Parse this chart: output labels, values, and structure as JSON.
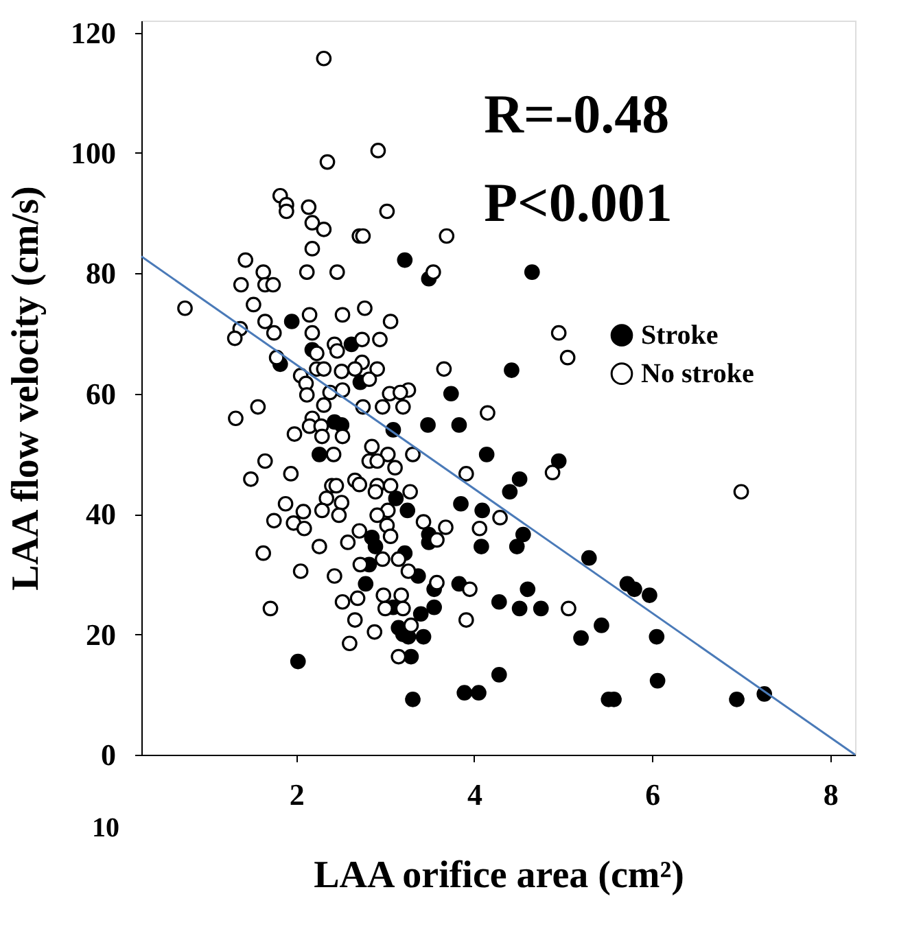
{
  "chart_data": {
    "type": "scatter",
    "xlabel": "LAA orifice area (cm²)",
    "ylabel": "LAA  flow  velocity (cm/s)",
    "xlim": [
      0.26,
      8.28
    ],
    "ylim": [
      0,
      122
    ],
    "xticks": [
      2,
      4,
      6,
      8
    ],
    "yticks": [
      0,
      20,
      40,
      60,
      80,
      100,
      120
    ],
    "grid": false,
    "legend": "right",
    "annotations": [
      "R=-0.48",
      "P<0.001",
      "10"
    ],
    "series": [
      {
        "name": "Stroke",
        "color": "#000000",
        "marker": "circle",
        "x": [
          3.22,
          3.49,
          1.95,
          2.18,
          2.62,
          1.82,
          2.72,
          3.74,
          2.43,
          2.51,
          3.09,
          3.48,
          3.83,
          2.26,
          4.14,
          3.12,
          3.25,
          3.85,
          4.09,
          2.85,
          2.89,
          3.49,
          3.49,
          4.08,
          3.22,
          2.82,
          3.37,
          3.55,
          2.78,
          3.83,
          4.28,
          3.09,
          3.55,
          3.4,
          3.15,
          3.2,
          3.26,
          3.43,
          3.29,
          2.02,
          3.31,
          3.89,
          4.05,
          4.28,
          4.65,
          4.42,
          4.95,
          4.51,
          4.4,
          4.48,
          4.55,
          5.29,
          5.72,
          5.8,
          5.97,
          4.6,
          4.51,
          4.75,
          5.2,
          5.43,
          6.05,
          5.51,
          5.57,
          6.06,
          6.95,
          7.26
        ],
        "values": [
          82.2,
          79.1,
          72,
          67.3,
          68.2,
          64.9,
          61.9,
          60,
          55.3,
          54.8,
          54,
          54.8,
          54.8,
          49.9,
          49.9,
          42.6,
          40.6,
          41.7,
          40.6,
          36.1,
          34.6,
          36.6,
          35.3,
          34.6,
          33.5,
          31.6,
          29.7,
          27.5,
          28.4,
          28.4,
          25.4,
          24.5,
          24.5,
          23.4,
          21.1,
          20,
          19.6,
          19.6,
          16.3,
          15.5,
          9.2,
          10.3,
          10.3,
          13.3,
          80.2,
          63.9,
          48.8,
          45.8,
          43.7,
          34.6,
          36.6,
          32.7,
          28.4,
          27.5,
          26.5,
          27.5,
          24.3,
          24.3,
          19.4,
          21.5,
          19.6,
          9.2,
          9.2,
          12.3,
          9.2,
          10.1
        ]
      },
      {
        "name": "No stroke",
        "color": "#ffffff",
        "marker": "circle",
        "x": [
          2.31,
          2.92,
          2.35,
          1.82,
          1.89,
          1.89,
          2.14,
          3.02,
          2.18,
          2.31,
          2.71,
          2.75,
          3.69,
          2.18,
          1.43,
          1.63,
          2.12,
          2.46,
          1.38,
          1.65,
          1.74,
          3.54,
          0.75,
          1.52,
          1.65,
          2.15,
          2.52,
          2.77,
          3.06,
          1.37,
          1.31,
          1.75,
          2.18,
          2.43,
          2.46,
          2.74,
          2.94,
          2.23,
          1.78,
          2.74,
          2.05,
          2.23,
          2.31,
          2.51,
          2.66,
          2.91,
          2.82,
          3.66,
          2.11,
          2.38,
          2.52,
          3.05,
          3.26,
          3.17,
          1.32,
          1.57,
          2.12,
          2.75,
          2.97,
          3.2,
          4.15,
          2.31,
          2.18,
          2.15,
          2.28,
          1.98,
          2.29,
          2.52,
          2.42,
          2.85,
          3.03,
          2.82,
          2.91,
          3.31,
          3.11,
          1.65,
          1.94,
          1.49,
          2.66,
          2.71,
          2.4,
          2.45,
          2.91,
          3.06,
          2.89,
          3.28,
          2.34,
          2.51,
          1.88,
          2.08,
          2.29,
          2.48,
          3.03,
          2.91,
          1.75,
          1.97,
          2.09,
          2.71,
          3.02,
          3.06,
          2.58,
          3.43,
          3.68,
          3.58,
          4.06,
          3.91,
          4.29,
          2.26,
          1.63,
          2.97,
          3.15,
          2.72,
          3.26,
          2.43,
          2.05,
          3.58,
          3.95,
          2.69,
          2.52,
          2.98,
          3.18,
          3.2,
          3,
          1.71,
          2.66,
          3.91,
          3.29,
          2.88,
          2.6,
          3.15,
          4.95,
          5.05,
          4.88,
          7,
          5.06
        ],
        "values": [
          115.7,
          100.4,
          98.5,
          92.9,
          91.4,
          90.3,
          91,
          90.3,
          88.4,
          87.3,
          86.2,
          86.2,
          86.2,
          84.1,
          82.2,
          80.2,
          80.2,
          80.2,
          78.1,
          78.1,
          78.1,
          80.2,
          74.2,
          74.8,
          72,
          73.1,
          73.1,
          74.2,
          72,
          70.8,
          69.2,
          70.1,
          70.1,
          68.2,
          67.1,
          69,
          69,
          66.7,
          66,
          65.2,
          63,
          64.1,
          64.1,
          63.7,
          64.1,
          64.1,
          62.4,
          64.1,
          61.7,
          60.2,
          60.6,
          60,
          60.6,
          60.2,
          55.9,
          57.8,
          59.8,
          57.8,
          57.8,
          57.8,
          56.8,
          58.1,
          55.9,
          54.6,
          54.6,
          53.3,
          52.9,
          52.9,
          49.9,
          51.2,
          49.9,
          48.8,
          48.8,
          49.9,
          47.7,
          48.8,
          46.7,
          45.8,
          45.6,
          44.9,
          44.7,
          44.7,
          44.7,
          44.7,
          43.7,
          43.7,
          42.6,
          41.9,
          41.7,
          40.4,
          40.6,
          39.8,
          40.6,
          39.8,
          38.9,
          38.5,
          37.6,
          37.2,
          38.1,
          36.3,
          35.3,
          38.7,
          37.8,
          35.7,
          37.6,
          46.7,
          39.4,
          34.6,
          33.5,
          32.5,
          32.5,
          31.6,
          30.5,
          29.7,
          30.5,
          28.6,
          27.5,
          26,
          25.4,
          26.5,
          26.5,
          24.3,
          24.3,
          24.3,
          22.4,
          22.4,
          21.5,
          20.4,
          18.5,
          16.3,
          70.1,
          66,
          46.9,
          43.7,
          24.3
        ]
      },
      {
        "type": "line",
        "color": "#4a7ab8",
        "marker": "none",
        "x": [
          0.26,
          8.28
        ],
        "values": [
          82.8,
          0
        ]
      }
    ]
  }
}
